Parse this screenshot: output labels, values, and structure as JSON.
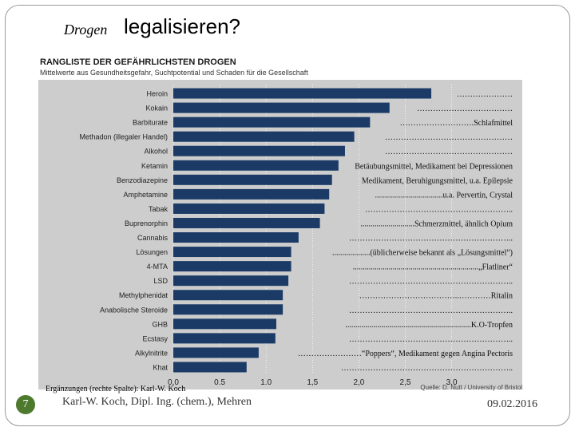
{
  "slide": {
    "title_small": "Drogen",
    "title_big": "legalisieren?",
    "footer_note": "Ergänzungen (rechte Spalte): Karl-W. Koch",
    "page_number": "7",
    "author": "Karl-W. Koch, Dipl. Ing. (chem.), Mehren",
    "date": "09.02.2016"
  },
  "colors": {
    "bar": "#1b3b66",
    "panel": "#cdcdcd",
    "header_bg": "#ffffff",
    "accent": "#4e7a2e"
  },
  "chart_data": {
    "type": "bar",
    "orientation": "horizontal",
    "title": "RANGLISTE DER GEFÄHRLICHSTEN DROGEN",
    "subtitle": "Mittelwerte aus Gesundheitsgefahr, Suchtpotential und Schaden für die Gesellschaft",
    "source": "Quelle: D. Nutt / University of Bristol",
    "xlim": [
      0,
      3.5
    ],
    "xticks": [
      "0,0",
      "0.5",
      "1.0",
      "1,5",
      "2,0",
      "2,5",
      "3.0"
    ],
    "categories": [
      "Heroin",
      "Kokain",
      "Barbiturate",
      "Methadon (illegaler Handel)",
      "Alkohol",
      "Ketamin",
      "Benzodiazepine",
      "Amphetamine",
      "Tabak",
      "Buprenorphin",
      "Cannabis",
      "Lösungen",
      "4-MTA",
      "LSD",
      "Methylphenidat",
      "Anabolische Steroide",
      "GHB",
      "Ecstasy",
      "Alkylnitrite",
      "Khat"
    ],
    "values": [
      2.78,
      2.33,
      2.12,
      1.95,
      1.85,
      1.78,
      1.71,
      1.68,
      1.63,
      1.58,
      1.35,
      1.27,
      1.27,
      1.24,
      1.18,
      1.18,
      1.11,
      1.1,
      0.92,
      0.79
    ],
    "annotations": [
      "…………………",
      "………………………………",
      "……………………….Schlafmittel",
      "…………………………………………",
      "…………………………………………",
      "Betäubungsmittel, Medikament bei Depressionen",
      "Medikament, Beruhigungsmittel, u.a. Epilepsie",
      "..................................u.a. Pervertin, Crystal",
      "………………………………………………..",
      "...........................Schmerzmittel, ähnlich Opium",
      "……………………………………………………..",
      "...................(üblicherweise bekannt als „Lösungsmittel“)",
      "...............................................................„Flatliner“",
      "……………………………………………………..",
      "………………………………..…………Ritalin",
      "……………………………………………………..",
      "...............................................................K.O-Tropfen",
      "……………………………………………………..",
      "……………………“Poppers“, Medikament gegen Angina Pectoris",
      "……………………………………………………….."
    ]
  }
}
